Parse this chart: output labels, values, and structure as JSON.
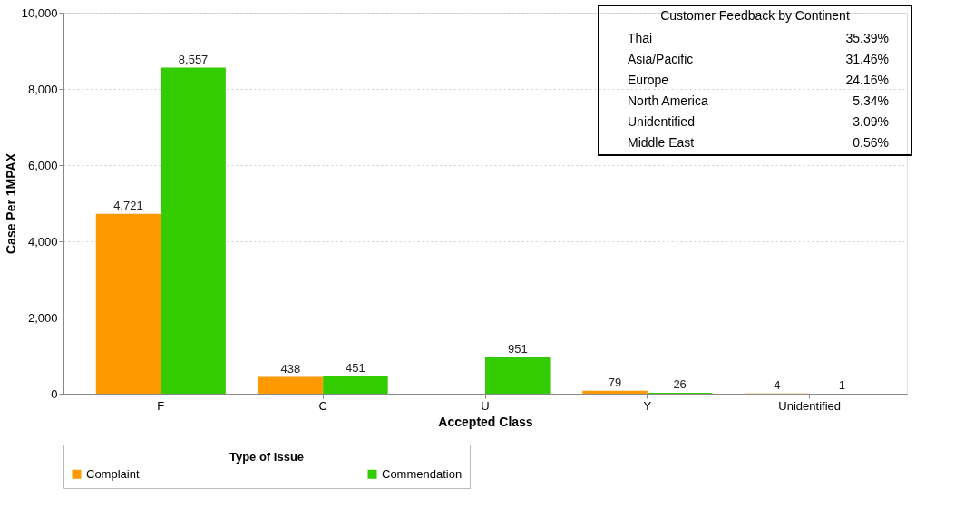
{
  "chart_data": {
    "type": "bar",
    "xlabel": "Accepted Class",
    "ylabel": "Case Per 1MPAX",
    "legend_title": "Type of Issue",
    "legend": "bottom",
    "grid": "y",
    "data_labels": true,
    "categories": [
      "F",
      "C",
      "U",
      "Y",
      "Unidentified"
    ],
    "series": [
      {
        "name": "Complaint",
        "color": "#ff9900",
        "values": [
          4721,
          438,
          null,
          79,
          4
        ],
        "value_labels": [
          "4,721",
          "438",
          null,
          "79",
          "4"
        ]
      },
      {
        "name": "Commendation",
        "color": "#33cc00",
        "values": [
          8557,
          451,
          951,
          26,
          1
        ],
        "value_labels": [
          "8,557",
          "451",
          "951",
          "26",
          "1"
        ]
      }
    ],
    "ylim": [
      0,
      10000
    ],
    "yticks": [
      0,
      {
        "value": 2000,
        "label": "2,000"
      },
      {
        "value": 4000,
        "label": "4,000"
      },
      {
        "value": 6000,
        "label": "6,000"
      },
      {
        "value": 8000,
        "label": "8,000"
      },
      {
        "value": 10000,
        "label": "10,000"
      }
    ],
    "annotations": [
      "Customer Feedback by Continent",
      "Thai",
      "35.39%",
      "Asia/Pacific",
      "31.46%",
      "Europe",
      "24.16%",
      "North America",
      "5.34%",
      "Unidentified",
      "3.09%",
      "Middle East",
      "0.56%"
    ]
  }
}
